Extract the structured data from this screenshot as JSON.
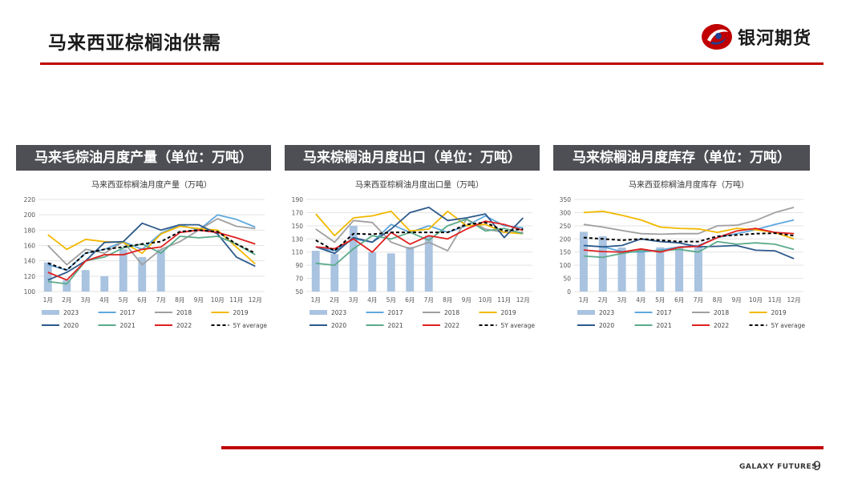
{
  "slide": {
    "title": "马来西亚棕榈油供需",
    "page_number": "9",
    "footer_brand": "GALAXY FUTURES"
  },
  "logo": {
    "text": "银河期货",
    "icon": "galaxy-futures-logo-icon",
    "colors": [
      "#c00000",
      "#1f3f8f"
    ]
  },
  "colors": {
    "accent": "#c00000",
    "header_bg": "#4d4f54"
  },
  "panels": [
    {
      "header": "马来毛棕油月度产量（单位：万吨）"
    },
    {
      "header": "马来棕榈油月度出口（单位：万吨）"
    },
    {
      "header": "马来棕榈油月度库存（单位：万吨）"
    }
  ],
  "chart_data": [
    {
      "type": "bar+line",
      "title": "马来西亚棕榈油月度产量（万吨）",
      "categories": [
        "1月",
        "2月",
        "3月",
        "4月",
        "5月",
        "6月",
        "7月",
        "8月",
        "9月",
        "10月",
        "11月",
        "12月"
      ],
      "ylim": [
        100,
        220
      ],
      "yticks": [
        100,
        120,
        140,
        160,
        180,
        200,
        220
      ],
      "grid": true,
      "legend_position": "bottom",
      "bar_series": {
        "name": "2023",
        "color": "#a9c3e0",
        "values": [
          138,
          115,
          128,
          120,
          155,
          145,
          155,
          null,
          null,
          null,
          null,
          null
        ]
      },
      "series": [
        {
          "name": "2017",
          "color": "#5fa8de",
          "dash": false,
          "values": [
            135,
            128,
            150,
            155,
            165,
            155,
            176,
            187,
            180,
            200,
            194,
            184
          ]
        },
        {
          "name": "2018",
          "color": "#a0a0a0",
          "dash": false,
          "values": [
            160,
            135,
            155,
            150,
            165,
            135,
            155,
            165,
            180,
            195,
            185,
            182
          ]
        },
        {
          "name": "2019",
          "color": "#f2b800",
          "dash": false,
          "values": [
            174,
            155,
            168,
            165,
            164,
            150,
            175,
            185,
            182,
            180,
            158,
            136
          ]
        },
        {
          "name": "2020",
          "color": "#2e5a8c",
          "dash": false,
          "values": [
            115,
            125,
            140,
            164,
            165,
            189,
            180,
            187,
            187,
            175,
            145,
            133
          ]
        },
        {
          "name": "2021",
          "color": "#5cab8a",
          "dash": false,
          "values": [
            113,
            110,
            140,
            145,
            157,
            162,
            150,
            172,
            170,
            172,
            162,
            148
          ]
        },
        {
          "name": "2022",
          "color": "#e02020",
          "dash": false,
          "values": [
            125,
            115,
            140,
            148,
            148,
            155,
            158,
            177,
            180,
            177,
            170,
            162
          ]
        },
        {
          "name": "5Y average",
          "color": "#000000",
          "dash": true,
          "values": [
            137,
            128,
            150,
            155,
            158,
            162,
            165,
            178,
            180,
            178,
            162,
            150
          ]
        }
      ]
    },
    {
      "type": "bar+line",
      "title": "马来西亚棕榈油月度出口量（万吨）",
      "categories": [
        "1月",
        "2月",
        "3月",
        "4月",
        "5月",
        "6月",
        "7月",
        "8月",
        "9月",
        "10月",
        "11月",
        "12月"
      ],
      "ylim": [
        50,
        190
      ],
      "yticks": [
        50,
        70,
        90,
        110,
        130,
        150,
        170,
        190
      ],
      "grid": true,
      "legend_position": "bottom",
      "bar_series": {
        "name": "2023",
        "color": "#a9c3e0",
        "values": [
          112,
          107,
          150,
          110,
          108,
          118,
          135,
          null,
          null,
          null,
          null,
          null
        ]
      },
      "series": [
        {
          "name": "2017",
          "color": "#5fa8de",
          "dash": false,
          "values": [
            118,
            112,
            130,
            125,
            152,
            140,
            150,
            140,
            150,
            165,
            150,
            147
          ]
        },
        {
          "name": "2018",
          "color": "#a0a0a0",
          "dash": false,
          "values": [
            145,
            125,
            158,
            155,
            125,
            115,
            125,
            112,
            160,
            145,
            140,
            140
          ]
        },
        {
          "name": "2019",
          "color": "#f2b800",
          "dash": false,
          "values": [
            168,
            135,
            162,
            165,
            172,
            142,
            145,
            172,
            150,
            152,
            140,
            138
          ]
        },
        {
          "name": "2020",
          "color": "#2e5a8c",
          "dash": false,
          "values": [
            118,
            108,
            132,
            125,
            145,
            170,
            178,
            158,
            162,
            168,
            132,
            162
          ]
        },
        {
          "name": "2021",
          "color": "#5cab8a",
          "dash": false,
          "values": [
            93,
            90,
            115,
            135,
            130,
            140,
            128,
            150,
            160,
            142,
            146,
            138
          ]
        },
        {
          "name": "2022",
          "color": "#e02020",
          "dash": false,
          "values": [
            118,
            115,
            130,
            110,
            140,
            122,
            135,
            130,
            145,
            157,
            152,
            143
          ]
        },
        {
          "name": "5Y average",
          "color": "#000000",
          "dash": true,
          "values": [
            128,
            112,
            138,
            137,
            140,
            140,
            140,
            140,
            152,
            155,
            142,
            145
          ]
        }
      ]
    },
    {
      "type": "bar+line",
      "title": "马来西亚棕榈油月度库存（万吨）",
      "categories": [
        "1月",
        "2月",
        "3月",
        "4月",
        "5月",
        "6月",
        "7月",
        "8月",
        "9月",
        "10月",
        "11月",
        "12月"
      ],
      "ylim": [
        0,
        350
      ],
      "yticks": [
        0,
        50,
        100,
        150,
        200,
        250,
        300,
        350
      ],
      "grid": true,
      "legend_position": "bottom",
      "bar_series": {
        "name": "2023",
        "color": "#a9c3e0",
        "values": [
          227,
          210,
          167,
          160,
          168,
          170,
          172,
          null,
          null,
          null,
          null,
          null
        ]
      },
      "series": [
        {
          "name": "2017",
          "color": "#5fa8de",
          "dash": false,
          "values": [
            175,
            170,
            152,
            150,
            158,
            170,
            175,
            205,
            220,
            235,
            255,
            272
          ]
        },
        {
          "name": "2018",
          "color": "#a0a0a0",
          "dash": false,
          "values": [
            255,
            245,
            232,
            220,
            218,
            220,
            220,
            250,
            252,
            270,
            300,
            320
          ]
        },
        {
          "name": "2019",
          "color": "#f2b800",
          "dash": false,
          "values": [
            300,
            305,
            290,
            272,
            245,
            240,
            238,
            225,
            240,
            235,
            225,
            200
          ]
        },
        {
          "name": "2020",
          "color": "#2e5a8c",
          "dash": false,
          "values": [
            175,
            170,
            175,
            200,
            190,
            185,
            170,
            172,
            175,
            157,
            155,
            125
          ]
        },
        {
          "name": "2021",
          "color": "#5cab8a",
          "dash": false,
          "values": [
            135,
            130,
            145,
            155,
            155,
            160,
            150,
            190,
            180,
            185,
            180,
            160
          ]
        },
        {
          "name": "2022",
          "color": "#e02020",
          "dash": false,
          "values": [
            158,
            152,
            150,
            162,
            150,
            168,
            172,
            205,
            230,
            240,
            225,
            220
          ]
        },
        {
          "name": "5Y average",
          "color": "#000000",
          "dash": true,
          "values": [
            205,
            200,
            195,
            200,
            195,
            190,
            190,
            210,
            215,
            220,
            222,
            212
          ]
        }
      ]
    }
  ]
}
